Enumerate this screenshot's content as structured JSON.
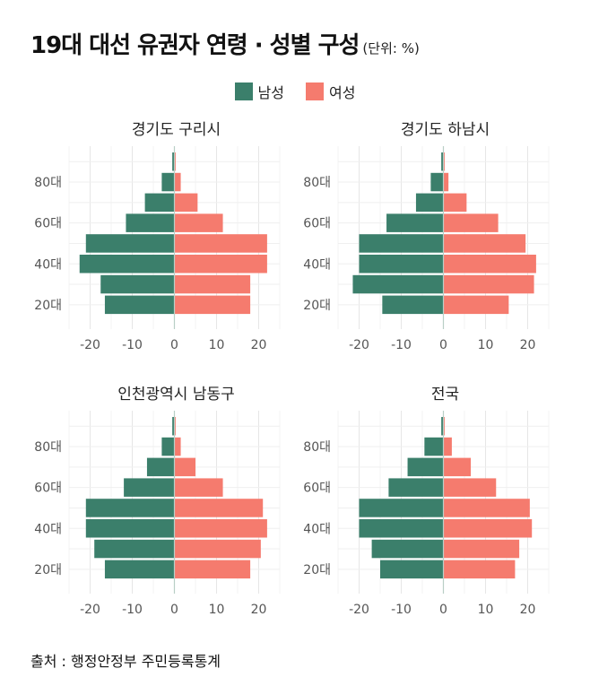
{
  "title": "19대 대선 유권자 연령 · 성별 구성",
  "unit": "(단위: %)",
  "legend": [
    {
      "label": "남성",
      "color": "#3b7f6b"
    },
    {
      "label": "여성",
      "color": "#f57b6e"
    }
  ],
  "source": "출처 : 행정안정부 주민등록통계",
  "chart_data": [
    {
      "type": "bar",
      "title": "경기도 구리시",
      "categories": [
        "20대",
        "30대",
        "40대",
        "50대",
        "60대",
        "70대",
        "80대",
        "90대"
      ],
      "y_tick_labels": [
        "20대",
        "40대",
        "60대",
        "80대"
      ],
      "x_ticks": [
        -20,
        -10,
        0,
        10,
        20
      ],
      "xlim": [
        -25,
        25
      ],
      "series": [
        {
          "name": "남성",
          "values": [
            -16.5,
            -17.5,
            -22.5,
            -21.0,
            -11.5,
            -7.0,
            -3.0,
            -0.5
          ]
        },
        {
          "name": "여성",
          "values": [
            18.0,
            18.0,
            22.0,
            22.0,
            11.5,
            5.5,
            1.5,
            0.3
          ]
        }
      ]
    },
    {
      "type": "bar",
      "title": "경기도 하남시",
      "categories": [
        "20대",
        "30대",
        "40대",
        "50대",
        "60대",
        "70대",
        "80대",
        "90대"
      ],
      "y_tick_labels": [
        "20대",
        "40대",
        "60대",
        "80대"
      ],
      "x_ticks": [
        -20,
        -10,
        0,
        10,
        20
      ],
      "xlim": [
        -25,
        25
      ],
      "series": [
        {
          "name": "남성",
          "values": [
            -14.5,
            -21.5,
            -20.0,
            -20.0,
            -13.5,
            -6.5,
            -3.0,
            -0.5
          ]
        },
        {
          "name": "여성",
          "values": [
            15.5,
            21.5,
            22.0,
            19.5,
            13.0,
            5.5,
            1.2,
            0.3
          ]
        }
      ]
    },
    {
      "type": "bar",
      "title": "인천광역시 남동구",
      "categories": [
        "20대",
        "30대",
        "40대",
        "50대",
        "60대",
        "70대",
        "80대",
        "90대"
      ],
      "y_tick_labels": [
        "20대",
        "40대",
        "60대",
        "80대"
      ],
      "x_ticks": [
        -20,
        -10,
        0,
        10,
        20
      ],
      "xlim": [
        -25,
        25
      ],
      "series": [
        {
          "name": "남성",
          "values": [
            -16.5,
            -19.0,
            -21.0,
            -21.0,
            -12.0,
            -6.5,
            -3.0,
            -0.5
          ]
        },
        {
          "name": "여성",
          "values": [
            18.0,
            20.5,
            22.0,
            21.0,
            11.5,
            5.0,
            1.5,
            0.3
          ]
        }
      ]
    },
    {
      "type": "bar",
      "title": "전국",
      "categories": [
        "20대",
        "30대",
        "40대",
        "50대",
        "60대",
        "70대",
        "80대",
        "90대"
      ],
      "y_tick_labels": [
        "20대",
        "40대",
        "60대",
        "80대"
      ],
      "x_ticks": [
        -20,
        -10,
        0,
        10,
        20
      ],
      "xlim": [
        -25,
        25
      ],
      "series": [
        {
          "name": "남성",
          "values": [
            -15.0,
            -17.0,
            -20.0,
            -20.0,
            -13.0,
            -8.5,
            -4.5,
            -0.5
          ]
        },
        {
          "name": "여성",
          "values": [
            17.0,
            18.0,
            21.0,
            20.5,
            12.5,
            6.5,
            2.0,
            0.3
          ]
        }
      ]
    }
  ]
}
